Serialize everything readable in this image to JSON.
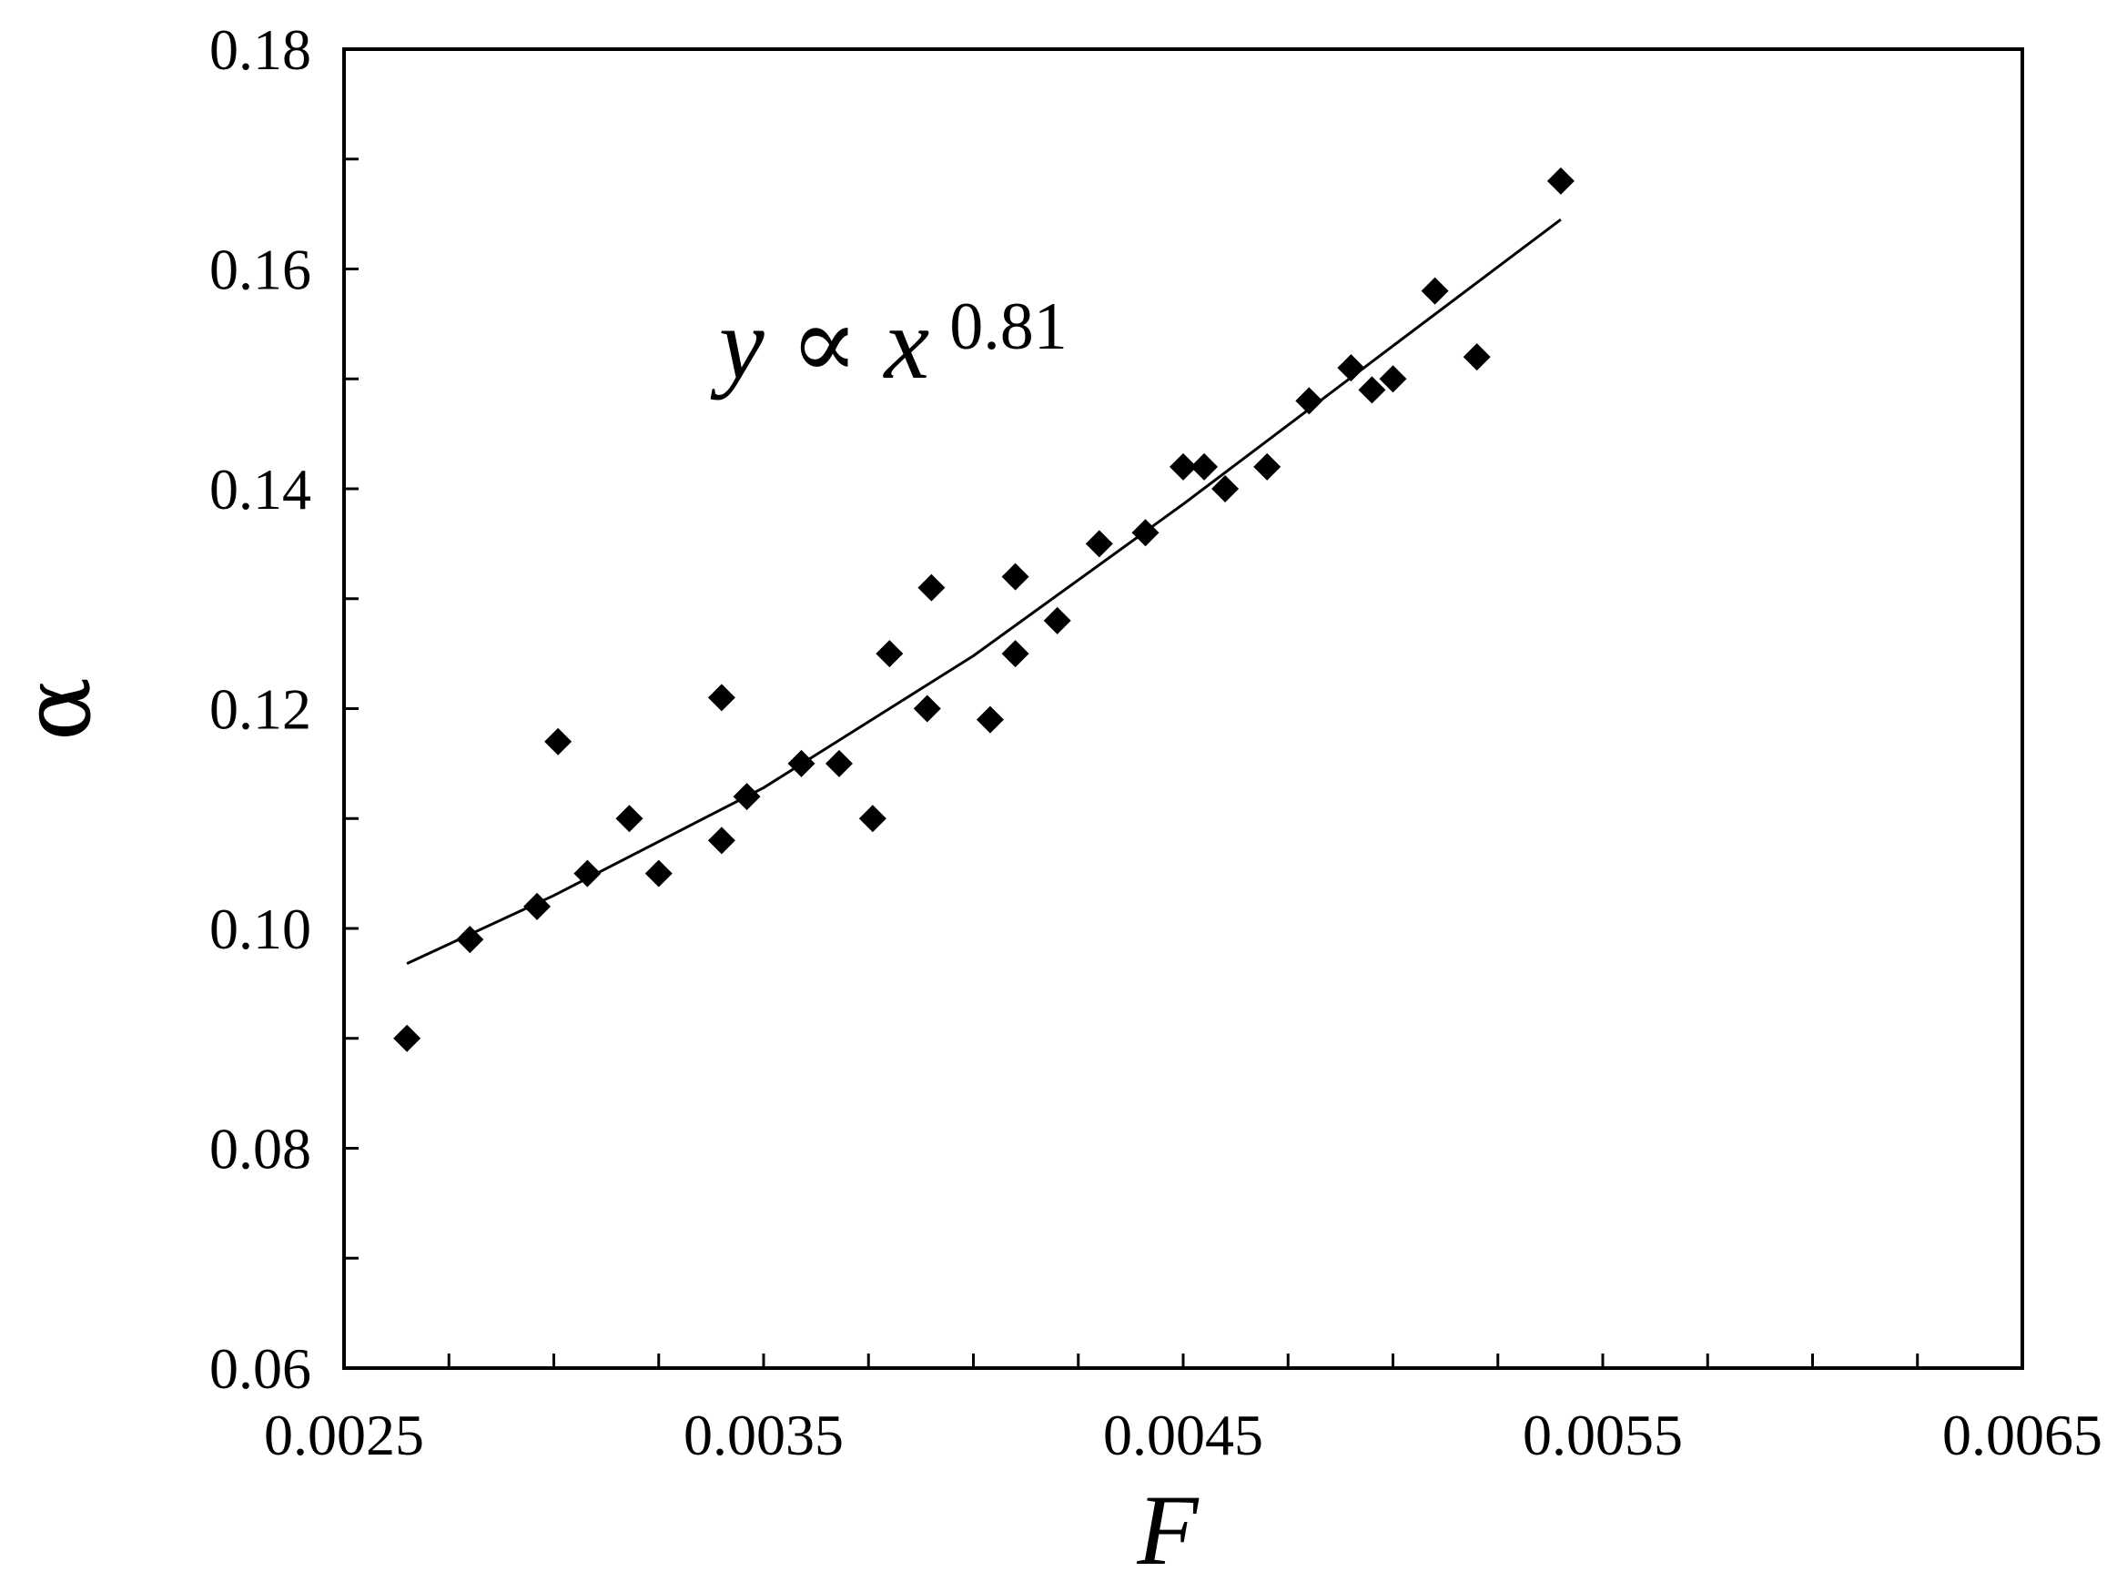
{
  "chart_data": {
    "type": "scatter",
    "xlabel": "F",
    "ylabel": "α",
    "xlim": [
      0.0025,
      0.0065
    ],
    "ylim": [
      0.06,
      0.18
    ],
    "x_ticks": [
      "0.0025",
      "0.0035",
      "0.0045",
      "0.0055",
      "0.0065"
    ],
    "x_tick_values": [
      0.0025,
      0.0035,
      0.0045,
      0.0055,
      0.0065
    ],
    "y_ticks": [
      "0.06",
      "0.08",
      "0.10",
      "0.12",
      "0.14",
      "0.16",
      "0.18"
    ],
    "y_tick_values": [
      0.06,
      0.08,
      0.1,
      0.12,
      0.14,
      0.16,
      0.18
    ],
    "annotation": {
      "base": "y ∝ x",
      "exponent": "0.81"
    },
    "series": [
      {
        "type": "scatter",
        "marker": "diamond",
        "color": "#000000",
        "points": [
          [
            0.00265,
            0.09
          ],
          [
            0.0028,
            0.099
          ],
          [
            0.00296,
            0.102
          ],
          [
            0.00301,
            0.117
          ],
          [
            0.00308,
            0.105
          ],
          [
            0.00318,
            0.11
          ],
          [
            0.00325,
            0.105
          ],
          [
            0.0034,
            0.108
          ],
          [
            0.0034,
            0.121
          ],
          [
            0.00346,
            0.112
          ],
          [
            0.00359,
            0.115
          ],
          [
            0.00368,
            0.115
          ],
          [
            0.00376,
            0.11
          ],
          [
            0.0038,
            0.125
          ],
          [
            0.00389,
            0.12
          ],
          [
            0.0039,
            0.131
          ],
          [
            0.00404,
            0.119
          ],
          [
            0.0041,
            0.125
          ],
          [
            0.0041,
            0.132
          ],
          [
            0.0042,
            0.128
          ],
          [
            0.0043,
            0.135
          ],
          [
            0.00441,
            0.136
          ],
          [
            0.0045,
            0.142
          ],
          [
            0.00455,
            0.142
          ],
          [
            0.0046,
            0.14
          ],
          [
            0.0047,
            0.142
          ],
          [
            0.0048,
            0.148
          ],
          [
            0.0049,
            0.151
          ],
          [
            0.00495,
            0.149
          ],
          [
            0.005,
            0.15
          ],
          [
            0.0051,
            0.158
          ],
          [
            0.0052,
            0.152
          ],
          [
            0.0054,
            0.168
          ]
        ]
      },
      {
        "type": "line",
        "color": "#000000",
        "points": [
          [
            0.00265,
            0.0968
          ],
          [
            0.003,
            0.103
          ],
          [
            0.0035,
            0.1128
          ],
          [
            0.004,
            0.1248
          ],
          [
            0.0045,
            0.1386
          ],
          [
            0.005,
            0.153
          ],
          [
            0.0054,
            0.1645
          ]
        ]
      }
    ]
  }
}
